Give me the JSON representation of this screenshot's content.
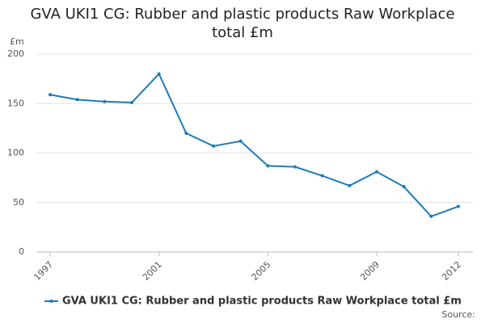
{
  "chart_data": {
    "type": "line",
    "title": "GVA UKI1 CG: Rubber and plastic products Raw Workplace total £m",
    "y_label": "£m",
    "source": "Source:",
    "x": [
      1997,
      1998,
      1999,
      2000,
      2001,
      2002,
      2003,
      2004,
      2005,
      2006,
      2007,
      2008,
      2009,
      2010,
      2011,
      2012
    ],
    "series": [
      {
        "name": "GVA UKI1 CG: Rubber and plastic products Raw Workplace total £m",
        "color": "#1f7ab8",
        "values": [
          159,
          154,
          152,
          151,
          180,
          120,
          107,
          112,
          87,
          86,
          77,
          67,
          81,
          66,
          36,
          46
        ]
      }
    ],
    "xlim": [
      1997,
      2012
    ],
    "xticks": [
      1997,
      2001,
      2005,
      2009,
      2012
    ],
    "ylim": [
      0,
      200
    ],
    "yticks": [
      0,
      50,
      100,
      150,
      200
    ],
    "grid": true,
    "legend": "bottom"
  }
}
